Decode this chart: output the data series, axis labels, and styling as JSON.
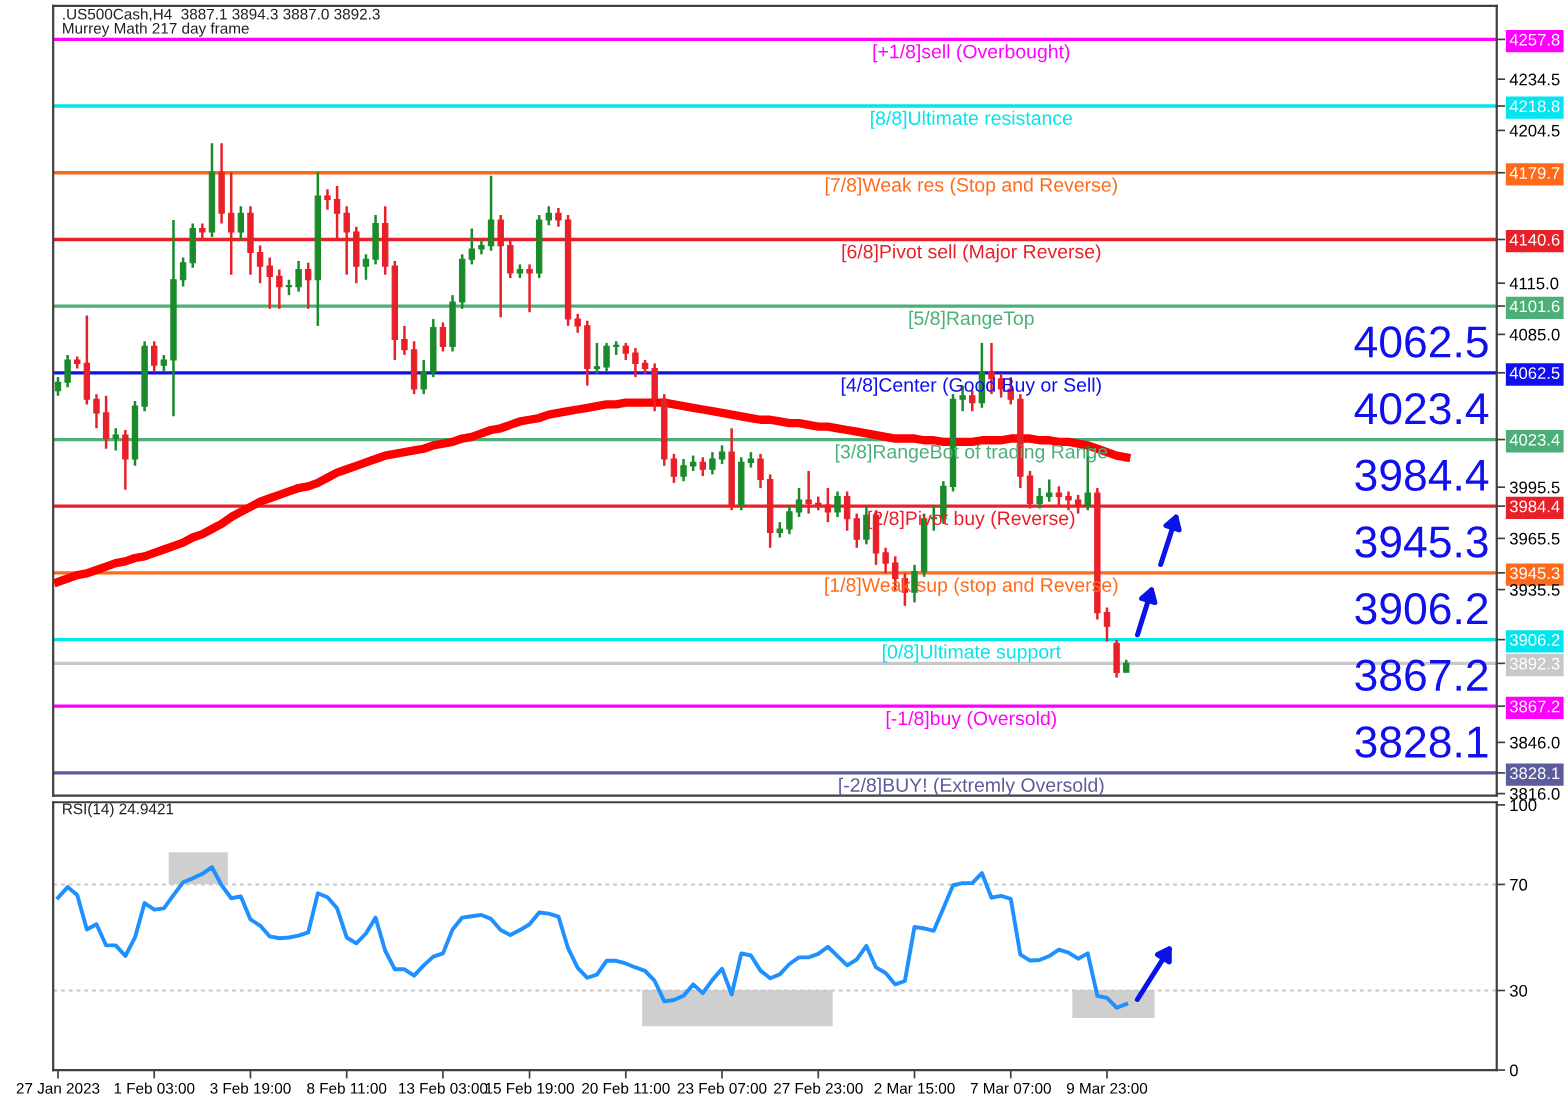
{
  "chart_data": [
    {
      "type": "candlestick",
      "title": ".US500Cash,H4  3887.1 3894.3 3887.0 3892.3",
      "subtitle": "Murrey Math 217 day frame",
      "categories": [
        null,
        null,
        null,
        null,
        null,
        null,
        null,
        null,
        null,
        null,
        null,
        null,
        null,
        null,
        null,
        null,
        null,
        null,
        null,
        null,
        null,
        null,
        null,
        null,
        null,
        null,
        null,
        null,
        null,
        null,
        null,
        null,
        null,
        null,
        null,
        null,
        null,
        null,
        null,
        null,
        null,
        null,
        null,
        null,
        null,
        null,
        null,
        null,
        null,
        null,
        null,
        null,
        null,
        null,
        null,
        null,
        null,
        null,
        null,
        null,
        null,
        null,
        null,
        null,
        null,
        null,
        null,
        null,
        null,
        null,
        null,
        null,
        null,
        null,
        null,
        null,
        null,
        null,
        null,
        null,
        null,
        null,
        null,
        null,
        null,
        null,
        null,
        null,
        null,
        null,
        null,
        null,
        null,
        null,
        null,
        null,
        null,
        null,
        null,
        null,
        null,
        null,
        null,
        null,
        null,
        null,
        null,
        null,
        null,
        null,
        null,
        null,
        null,
        null,
        null,
        null,
        null,
        null,
        null,
        null,
        null,
        null,
        null,
        null,
        null,
        null,
        null,
        null,
        null,
        null,
        null,
        null,
        null,
        null,
        null,
        null,
        null,
        null,
        null,
        null,
        null,
        null,
        null,
        null,
        null,
        null,
        null,
        null,
        null,
        null
      ],
      "ohlc": [
        [
          4052,
          4060,
          4049,
          4057
        ],
        [
          4057,
          4073,
          4054,
          4070
        ],
        [
          4070,
          4072,
          4065,
          4068
        ],
        [
          4068,
          4096,
          4044,
          4047
        ],
        [
          4047,
          4050,
          4030,
          4039
        ],
        [
          4039,
          4049,
          4018,
          4024
        ],
        [
          4024,
          4030,
          4017,
          4026
        ],
        [
          4026,
          4029,
          3994,
          4012
        ],
        [
          4012,
          4046,
          4008,
          4043
        ],
        [
          4043,
          4081,
          4040,
          4078
        ],
        [
          4078,
          4081,
          4063,
          4067
        ],
        [
          4067,
          4073,
          4063,
          4070
        ],
        [
          4070,
          4152,
          4037,
          4117
        ],
        [
          4117,
          4130,
          4113,
          4127
        ],
        [
          4127,
          4150,
          4124,
          4147
        ],
        [
          4147,
          4150,
          4140,
          4145
        ],
        [
          4145,
          4197,
          4142,
          4180
        ],
        [
          4180,
          4197,
          4150,
          4156
        ],
        [
          4156,
          4180,
          4120,
          4145
        ],
        [
          4145,
          4160,
          4140,
          4156
        ],
        [
          4156,
          4160,
          4120,
          4133
        ],
        [
          4133,
          4137,
          4115,
          4125
        ],
        [
          4125,
          4130,
          4100,
          4119
        ],
        [
          4119,
          4123,
          4100,
          4113
        ],
        [
          4113,
          4117,
          4108,
          4113
        ],
        [
          4113,
          4128,
          4110,
          4123
        ],
        [
          4123,
          4127,
          4100,
          4117
        ],
        [
          4117,
          4180,
          4090,
          4166
        ],
        [
          4166,
          4170,
          4158,
          4164
        ],
        [
          4164,
          4172,
          4140,
          4156
        ],
        [
          4156,
          4160,
          4120,
          4145
        ],
        [
          4145,
          4148,
          4115,
          4125
        ],
        [
          4125,
          4132,
          4117,
          4129
        ],
        [
          4129,
          4155,
          4126,
          4150
        ],
        [
          4150,
          4160,
          4120,
          4125
        ],
        [
          4125,
          4128,
          4070,
          4082
        ],
        [
          4082,
          4090,
          4073,
          4076
        ],
        [
          4076,
          4081,
          4050,
          4053
        ],
        [
          4053,
          4070,
          4050,
          4063
        ],
        [
          4063,
          4094,
          4060,
          4089
        ],
        [
          4089,
          4092,
          4075,
          4078
        ],
        [
          4078,
          4108,
          4075,
          4104
        ],
        [
          4104,
          4132,
          4100,
          4129
        ],
        [
          4129,
          4147,
          4126,
          4135
        ],
        [
          4135,
          4140,
          4132,
          4137
        ],
        [
          4137,
          4178,
          4134,
          4152
        ],
        [
          4152,
          4155,
          4095,
          4137
        ],
        [
          4137,
          4140,
          4118,
          4121
        ],
        [
          4121,
          4126,
          4118,
          4123
        ],
        [
          4123,
          4126,
          4098,
          4121
        ],
        [
          4121,
          4155,
          4118,
          4152
        ],
        [
          4152,
          4160,
          4149,
          4156
        ],
        [
          4156,
          4159,
          4148,
          4152
        ],
        [
          4152,
          4155,
          4090,
          4094
        ],
        [
          4094,
          4097,
          4086,
          4090
        ],
        [
          4090,
          4093,
          4055,
          4065
        ],
        [
          4065,
          4080,
          4062,
          4066
        ],
        [
          4066,
          4080,
          4063,
          4078
        ],
        [
          4078,
          4081,
          4073,
          4078
        ],
        [
          4078,
          4080,
          4070,
          4074
        ],
        [
          4074,
          4077,
          4060,
          4068
        ],
        [
          4068,
          4070,
          4062,
          4065
        ],
        [
          4065,
          4068,
          4040,
          4047
        ],
        [
          4047,
          4050,
          4008,
          4012
        ],
        [
          4012,
          4015,
          3998,
          4002
        ],
        [
          4002,
          4012,
          3999,
          4008
        ],
        [
          4008,
          4014,
          4005,
          4010
        ],
        [
          4010,
          4013,
          4002,
          4006
        ],
        [
          4006,
          4016,
          4003,
          4012
        ],
        [
          4012,
          4020,
          4009,
          4016
        ],
        [
          4016,
          4030,
          3982,
          3985
        ],
        [
          3985,
          4013,
          3982,
          4010
        ],
        [
          4010,
          4016,
          4007,
          4012
        ],
        [
          4012,
          4015,
          3995,
          4000
        ],
        [
          4000,
          4003,
          3960,
          3969
        ],
        [
          3969,
          3975,
          3966,
          3971
        ],
        [
          3971,
          3985,
          3968,
          3981
        ],
        [
          3981,
          3995,
          3978,
          3988
        ],
        [
          3988,
          4005,
          3980,
          3986
        ],
        [
          3986,
          3990,
          3982,
          3985
        ],
        [
          3985,
          3995,
          3975,
          3981
        ],
        [
          3981,
          3993,
          3978,
          3990
        ],
        [
          3990,
          3993,
          3970,
          3977
        ],
        [
          3977,
          3980,
          3960,
          3965
        ],
        [
          3965,
          3985,
          3962,
          3979
        ],
        [
          3979,
          3982,
          3950,
          3957
        ],
        [
          3957,
          3960,
          3945,
          3951
        ],
        [
          3951,
          3955,
          3935,
          3942
        ],
        [
          3942,
          3945,
          3926,
          3934
        ],
        [
          3934,
          3950,
          3928,
          3946
        ],
        [
          3946,
          3980,
          3943,
          3977
        ],
        [
          3977,
          3985,
          3970,
          3977
        ],
        [
          3977,
          3999,
          3974,
          3996
        ],
        [
          3996,
          4050,
          3993,
          4047
        ],
        [
          4047,
          4055,
          4040,
          4049
        ],
        [
          4049,
          4052,
          4040,
          4045
        ],
        [
          4045,
          4080,
          4042,
          4063
        ],
        [
          4063,
          4080,
          4050,
          4059
        ],
        [
          4059,
          4062,
          4048,
          4053
        ],
        [
          4053,
          4060,
          4044,
          4047
        ],
        [
          4047,
          4050,
          3995,
          4002
        ],
        [
          4002,
          4005,
          3983,
          3986
        ],
        [
          3986,
          3995,
          3983,
          3990
        ],
        [
          3990,
          4000,
          3987,
          3992
        ],
        [
          3992,
          3996,
          3985,
          3990
        ],
        [
          3990,
          3993,
          3982,
          3988
        ],
        [
          3988,
          3991,
          3980,
          3985
        ],
        [
          3985,
          4020,
          3982,
          3992
        ],
        [
          3992,
          3995,
          3918,
          3922
        ],
        [
          3922,
          3925,
          3905,
          3914
        ],
        [
          3904,
          3906,
          3884,
          3887
        ],
        [
          3887.1,
          3894.3,
          3887.0,
          3892.3
        ],
        null,
        null,
        null,
        null,
        null,
        null,
        null,
        null,
        null,
        null,
        null,
        null,
        null,
        null,
        null,
        null,
        null,
        null,
        null,
        null,
        null,
        null,
        null,
        null,
        null,
        null,
        null,
        null,
        null,
        null,
        null,
        null,
        null,
        null,
        null,
        null,
        null,
        null
      ],
      "series": [
        {
          "type": "line",
          "color": "#ff0000",
          "values": [
            3940,
            3942,
            3944,
            3945,
            3947,
            3949,
            3951,
            3952,
            3954,
            3955,
            3957,
            3959,
            3961,
            3963,
            3966,
            3968,
            3971,
            3974,
            3978,
            3981,
            3984,
            3987,
            3989,
            3991,
            3993,
            3995,
            3996,
            3998,
            4001,
            4004,
            4006,
            4008,
            4010,
            4012,
            4014,
            4015,
            4016,
            4017,
            4018,
            4020,
            4021,
            4022,
            4024,
            4025,
            4027,
            4029,
            4030,
            4032,
            4034,
            4035,
            4036,
            4038,
            4039,
            4040,
            4041,
            4042,
            4043,
            4044,
            4044,
            4045,
            4045,
            4045,
            4045,
            4045,
            4044,
            4043,
            4042,
            4041,
            4040,
            4039,
            4038,
            4037,
            4036,
            4035,
            4035,
            4034,
            4033,
            4033,
            4032,
            4031,
            4031,
            4030,
            4029,
            4028,
            4027,
            4026,
            4025,
            4024,
            4024,
            4024,
            4023,
            4023,
            4022,
            4022,
            4022,
            4022,
            4023,
            4023,
            4023,
            4024,
            4024,
            4024,
            4023,
            4023,
            4022,
            4022,
            4021,
            4020,
            4018,
            4016,
            4014,
            4013,
            null,
            null,
            null,
            null,
            null,
            null,
            null,
            null,
            null,
            null,
            null,
            null,
            null,
            null,
            null,
            null,
            null,
            null,
            null,
            null,
            null,
            null,
            null,
            null,
            null,
            null,
            null,
            null,
            null,
            null,
            null,
            null,
            null,
            null,
            null,
            null,
            null,
            null
          ]
        }
      ],
      "ylim": [
        3814.8,
        4277.4
      ],
      "yticks": [
        4257.8,
        4234.5,
        4218.8,
        4204.5,
        4179.7,
        4140.6,
        {
          "value": 4115,
          "label": "4115.0"
        },
        4101.6,
        {
          "value": 4085,
          "label": "4085.0"
        },
        4062.5,
        4023.4,
        3995.5,
        3984.4,
        3965.5,
        3945.3,
        3935.5,
        3906.2,
        3892.3,
        3867.2,
        {
          "value": 3846,
          "label": "3846.0"
        },
        3828.1,
        {
          "value": 3816,
          "label": "3816.0"
        }
      ],
      "tick_labels": "y",
      "ref_lines": [
        {
          "axis": "y",
          "value": 4257.8,
          "label": "[+1/8]sell (Overbought)",
          "color": "#ff00ff",
          "line_style": "solid"
        },
        {
          "axis": "y",
          "value": 4218.8,
          "label": "[8/8]Ultimate resistance",
          "color": "#00e5ee",
          "line_style": "solid"
        },
        {
          "axis": "y",
          "value": 4179.7,
          "label": "[7/8]Weak res (Stop and Reverse)",
          "color": "#ff6a1a",
          "line_style": "solid"
        },
        {
          "axis": "y",
          "value": 4140.6,
          "label": "[6/8]Pivot sell (Major Reverse)",
          "color": "#e8202a",
          "line_style": "solid"
        },
        {
          "axis": "y",
          "value": 4101.6,
          "label": "[5/8]RangeTop",
          "color": "#4caf78",
          "line_style": "solid"
        },
        {
          "axis": "y",
          "value": 4062.5,
          "label": "[4/8]Center (Good Buy or Sell)",
          "color": "#1010ee",
          "line_style": "solid"
        },
        {
          "axis": "y",
          "value": 4023.4,
          "label": "[3/8]RangeBot of trading Range",
          "color": "#4caf78",
          "line_style": "solid"
        },
        {
          "axis": "y",
          "value": 3984.4,
          "label": "[2/8]Pivot buy (Reverse)",
          "color": "#e8202a",
          "line_style": "solid"
        },
        {
          "axis": "y",
          "value": 3945.3,
          "label": "[1/8]Weak sup (stop and Reverse)",
          "color": "#ff6a1a",
          "line_style": "solid"
        },
        {
          "axis": "y",
          "value": 3906.2,
          "label": "[0/8]Ultimate support",
          "color": "#00e5ee",
          "line_style": "solid"
        },
        {
          "axis": "y",
          "value": 3892.3,
          "color": "#c8c8c8",
          "line_style": "solid"
        },
        {
          "axis": "y",
          "value": 3867.2,
          "label": "[-1/8]buy (Oversold)",
          "color": "#ff00ff",
          "line_style": "solid"
        },
        {
          "axis": "y",
          "value": 3828.1,
          "label": "[-2/8]BUY! (Extremly Oversold)",
          "color": "#5c5c9c",
          "line_style": "solid"
        }
      ],
      "annotations": [
        {
          "text": "4062.5",
          "y": 4062.5
        },
        {
          "text": "4023.4",
          "y": 4023.4
        },
        {
          "text": "3984.4",
          "y": 3984.4
        },
        {
          "text": "3945.3",
          "y": 3945.3
        },
        {
          "text": "3906.2",
          "y": 3906.2
        },
        {
          "text": "3867.2",
          "y": 3867.2
        },
        {
          "text": "3828.1",
          "y": 3828.1
        }
      ]
    },
    {
      "type": "line",
      "title": "RSI(14) 24.9421",
      "categories": [
        "27 Jan 2023",
        null,
        null,
        null,
        null,
        null,
        null,
        null,
        null,
        null,
        "1 Feb 03:00",
        null,
        null,
        null,
        null,
        null,
        null,
        null,
        null,
        null,
        "3 Feb 19:00",
        null,
        null,
        null,
        null,
        null,
        null,
        null,
        null,
        null,
        "8 Feb 11:00",
        null,
        null,
        null,
        null,
        null,
        null,
        null,
        null,
        null,
        "13 Feb 03:00",
        null,
        null,
        null,
        null,
        null,
        null,
        null,
        null,
        "15 Feb 19:00",
        null,
        null,
        null,
        null,
        null,
        null,
        null,
        null,
        null,
        "20 Feb 11:00",
        null,
        null,
        null,
        null,
        null,
        null,
        null,
        null,
        null,
        "23 Feb 07:00",
        null,
        null,
        null,
        null,
        null,
        null,
        null,
        null,
        null,
        "27 Feb 23:00",
        null,
        null,
        null,
        null,
        null,
        null,
        null,
        null,
        null,
        "2 Mar 15:00",
        null,
        null,
        null,
        null,
        null,
        null,
        null,
        null,
        null,
        "7 Mar 07:00",
        null,
        null,
        null,
        null,
        null,
        null,
        null,
        null,
        null,
        "9 Mar 23:00",
        null,
        null,
        null,
        null,
        null,
        null,
        null,
        null,
        null,
        null,
        null,
        null,
        null,
        null,
        null,
        null,
        null,
        null,
        null,
        null,
        null,
        null,
        null,
        null,
        null,
        null,
        null,
        null,
        null,
        null,
        null,
        null,
        null,
        null,
        null,
        null,
        null,
        null,
        null,
        null
      ],
      "series": [
        {
          "color": "#1e90ff",
          "values": [
            65,
            69,
            66,
            53,
            55,
            47,
            47,
            43,
            50,
            63,
            60.5,
            61,
            66,
            70.8,
            72.3,
            74,
            76.5,
            69.7,
            64.8,
            65.5,
            56.8,
            54.5,
            50.4,
            49.7,
            50,
            50.7,
            51.9,
            66.7,
            65.2,
            61,
            50,
            47.8,
            51.5,
            57.5,
            45,
            38,
            38,
            35.6,
            39.5,
            42.8,
            44,
            53,
            57.5,
            58,
            58.5,
            57,
            52.8,
            50.9,
            52.8,
            55,
            59.4,
            59,
            57.9,
            46,
            38.5,
            34.8,
            36,
            41.2,
            41.2,
            40.2,
            38.7,
            37.4,
            33.6,
            25.9,
            26.4,
            28.0,
            32.3,
            29.0,
            34,
            38.2,
            28.5,
            44,
            43.2,
            37.5,
            34.6,
            36.1,
            40,
            42.5,
            42.5,
            43.8,
            46.5,
            43,
            39.5,
            41.7,
            46.8,
            38.7,
            36.6,
            32.3,
            33.6,
            54.0,
            53.4,
            52.5,
            61,
            69.7,
            70.5,
            70.5,
            74.3,
            65,
            65.7,
            64.6,
            43.5,
            41.3,
            41.5,
            43,
            45.4,
            44.3,
            42,
            44,
            28,
            27.2,
            23.5,
            24.9,
            null,
            null,
            null,
            null,
            null,
            null,
            null,
            null,
            null,
            null,
            null,
            null,
            null,
            null,
            null,
            null,
            null,
            null,
            null,
            null,
            null,
            null,
            null,
            null,
            null,
            null,
            null,
            null,
            null,
            null,
            null,
            null,
            null,
            null,
            null,
            null,
            null,
            null
          ]
        }
      ],
      "ylim": [
        0,
        101
      ],
      "yticks": [
        0,
        30,
        70,
        100
      ],
      "ref_lines": [
        {
          "axis": "y",
          "value": 30,
          "color": "#c8c8c8",
          "line_style": "dotted"
        },
        {
          "axis": "y",
          "value": 70,
          "color": "#c8c8c8",
          "line_style": "dotted"
        }
      ]
    }
  ]
}
